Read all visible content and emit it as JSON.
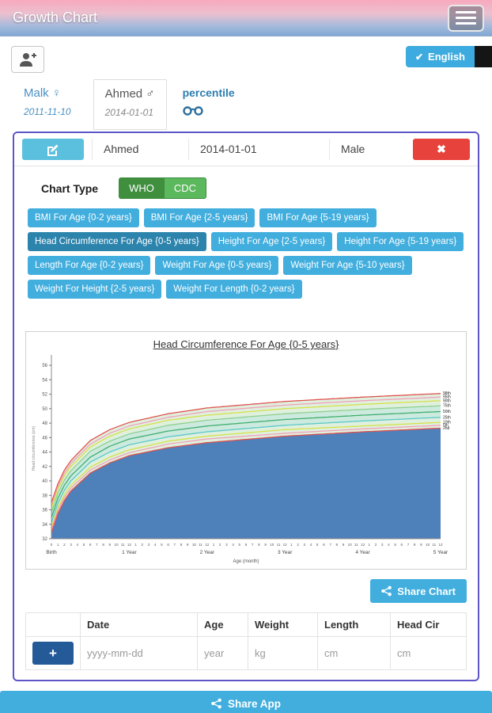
{
  "header": {
    "title": "Growth Chart"
  },
  "toolbar": {
    "language_label": "English"
  },
  "icons": {
    "check": "✔",
    "close": "✖"
  },
  "patients": {
    "tabs": [
      {
        "label": "Malk ♀",
        "dob": "2011-11-10",
        "selected": false
      },
      {
        "label": "Ahmed ♂",
        "dob": "2014-01-01",
        "selected": true
      }
    ],
    "percentile_label": "percentile"
  },
  "patient_bar": {
    "name": "Ahmed",
    "dob": "2014-01-01",
    "gender": "Male"
  },
  "chart_type": {
    "label": "Chart Type",
    "standards": [
      "WHO",
      "CDC"
    ],
    "selected_standard": "WHO",
    "options": [
      "BMI For Age {0-2 years}",
      "BMI For Age {2-5 years}",
      "BMI For Age {5-19 years}",
      "Head Circumference For Age {0-5 years}",
      "Height For Age {2-5 years}",
      "Height For Age {5-19 years}",
      "Length For Age {0-2 years}",
      "Weight For Age {0-5 years}",
      "Weight For Age {5-10 years}",
      "Weight For Height {2-5 years}",
      "Weight For Length {0-2 years}"
    ],
    "selected_option": "Head Circumference For Age {0-5 years}"
  },
  "chart_data": {
    "type": "line",
    "title": "Head Circumference For Age {0-5 years}",
    "xlabel": "Age (month)",
    "ylabel": "Head circumference (cm)",
    "ylim": [
      32,
      57
    ],
    "y_ticks": [
      32,
      34,
      36,
      38,
      40,
      42,
      44,
      46,
      48,
      50,
      52,
      54,
      56
    ],
    "x_months": [
      0,
      1,
      2,
      3,
      6,
      9,
      12,
      18,
      24,
      36,
      48,
      60
    ],
    "x_year_labels": [
      "Birth",
      "1 Year",
      "2 Year",
      "3 Year",
      "4 Year",
      "5 Year"
    ],
    "legend_position": "right-edge",
    "grid": false,
    "fill_under_color": "#4e80ba",
    "band_color": "#dff0df",
    "mid_band_color": "#cdeadf",
    "series": [
      {
        "name": "98th",
        "color": "#e0524e",
        "values": [
          37.0,
          39.6,
          41.5,
          42.8,
          45.6,
          47.1,
          48.1,
          49.3,
          50.1,
          51.0,
          51.6,
          52.1
        ]
      },
      {
        "name": "95th",
        "color": "#f2a0b8",
        "values": [
          36.6,
          39.2,
          41.1,
          42.4,
          45.1,
          46.6,
          47.6,
          48.8,
          49.6,
          50.5,
          51.1,
          51.6
        ]
      },
      {
        "name": "90th",
        "color": "#d6e14a",
        "values": [
          36.2,
          38.9,
          40.7,
          42.0,
          44.7,
          46.2,
          47.2,
          48.4,
          49.1,
          50.0,
          50.6,
          51.1
        ]
      },
      {
        "name": "75th",
        "color": "#8fd08f",
        "values": [
          35.6,
          38.3,
          40.1,
          41.4,
          44.1,
          45.5,
          46.5,
          47.7,
          48.4,
          49.3,
          49.9,
          50.4
        ]
      },
      {
        "name": "50th",
        "color": "#3fae6e",
        "values": [
          34.9,
          37.6,
          39.4,
          40.7,
          43.3,
          44.8,
          45.8,
          46.9,
          47.6,
          48.5,
          49.1,
          49.6
        ]
      },
      {
        "name": "25th",
        "color": "#5bc8c8",
        "values": [
          34.2,
          36.9,
          38.7,
          40.0,
          42.6,
          44.0,
          45.0,
          46.1,
          46.8,
          47.7,
          48.3,
          48.8
        ]
      },
      {
        "name": "10th",
        "color": "#d6e14a",
        "values": [
          33.6,
          36.3,
          38.1,
          39.4,
          41.9,
          43.3,
          44.3,
          45.5,
          46.2,
          47.1,
          47.6,
          48.1
        ]
      },
      {
        "name": "5th",
        "color": "#f2a0b8",
        "values": [
          33.2,
          35.9,
          37.7,
          39.0,
          41.5,
          42.9,
          43.9,
          45.1,
          45.8,
          46.6,
          47.2,
          47.7
        ]
      },
      {
        "name": "2nd",
        "color": "#e0524e",
        "values": [
          32.8,
          35.5,
          37.3,
          38.6,
          41.1,
          42.5,
          43.5,
          44.6,
          45.3,
          46.2,
          46.8,
          47.3
        ]
      }
    ]
  },
  "buttons": {
    "share_chart": "Share Chart",
    "share_app": "Share App"
  },
  "table": {
    "headers": [
      "",
      "Date",
      "Age",
      "Weight",
      "Length",
      "Head Cir"
    ],
    "add_label": "+",
    "placeholders": {
      "date": "yyyy-mm-dd",
      "age": "year",
      "weight": "kg",
      "length": "cm",
      "head": "cm"
    }
  }
}
